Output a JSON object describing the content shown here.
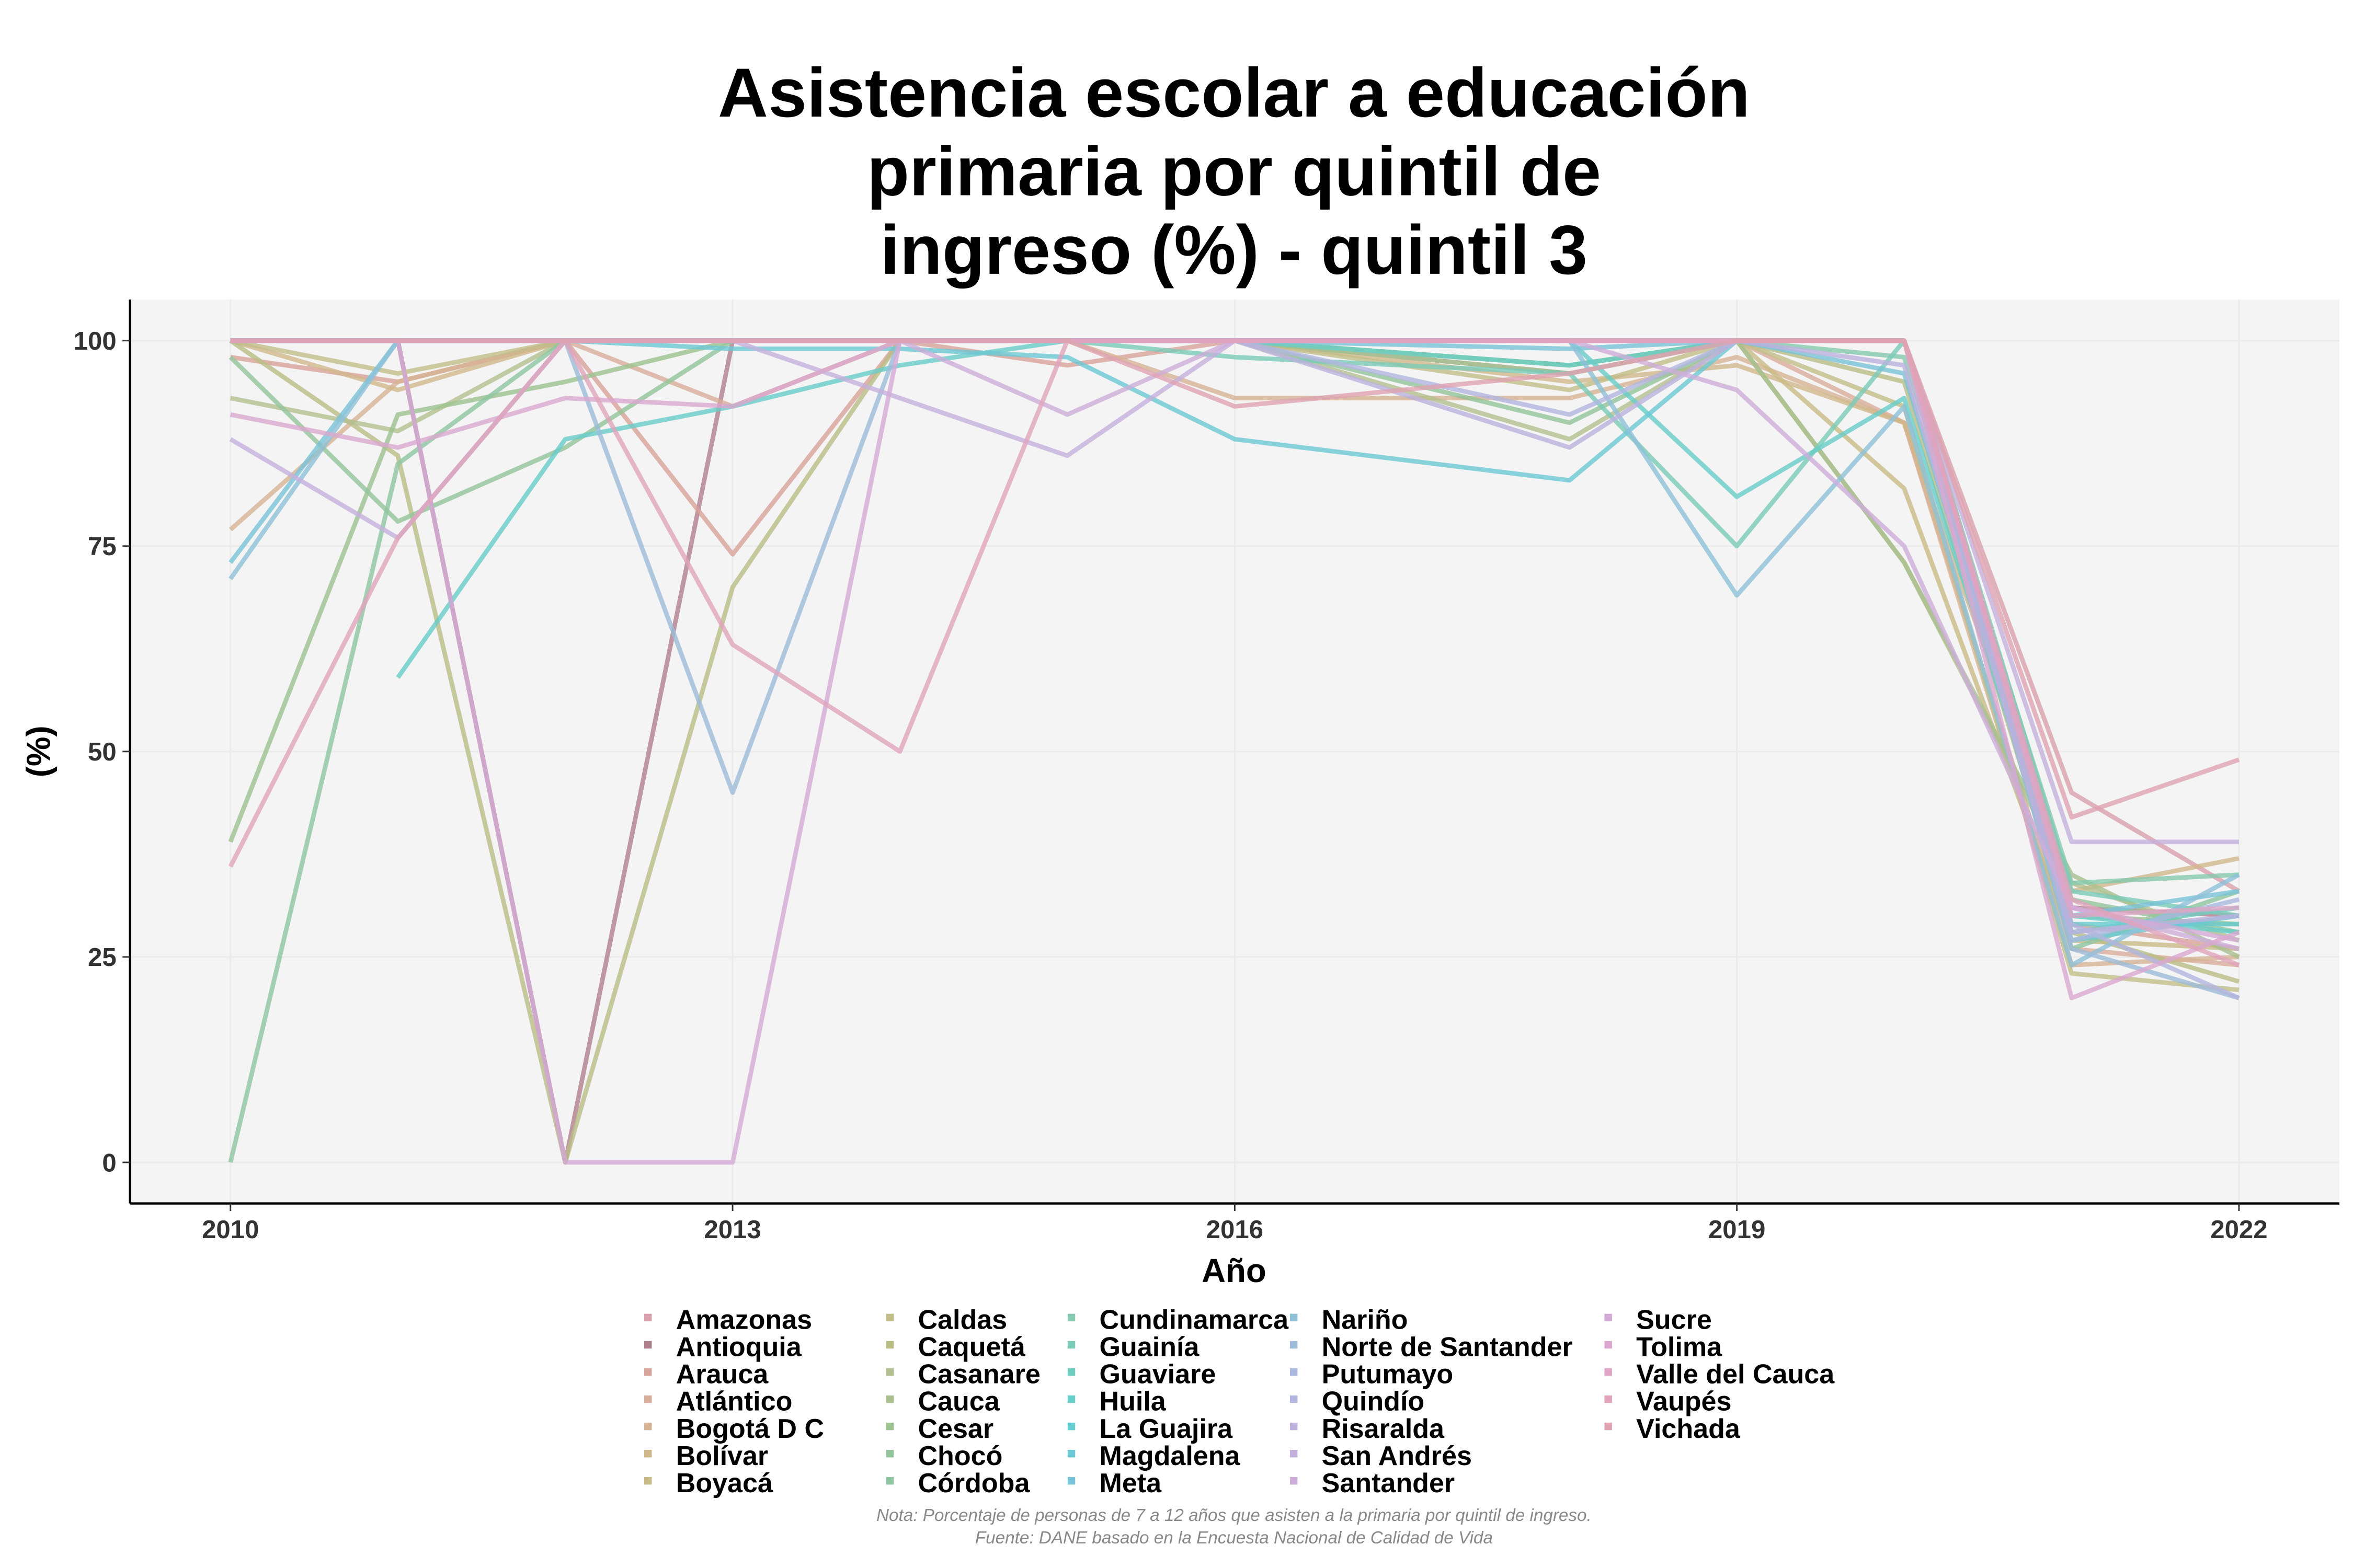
{
  "chart_data": {
    "type": "line",
    "title": [
      "Asistencia escolar a educación",
      "primaria por quintil de",
      "ingreso (%) - quintil 3"
    ],
    "xlabel": "Año",
    "ylabel": "(%)",
    "x": [
      2010,
      2011,
      2012,
      2013,
      2014,
      2015,
      2016,
      2018,
      2019,
      2020,
      2021,
      2022
    ],
    "xticks": [
      "2010",
      "2013",
      "2016",
      "2019",
      "2022"
    ],
    "yticks": [
      "0",
      "25",
      "50",
      "75",
      "100"
    ],
    "xlim": [
      2009.4,
      2022.6
    ],
    "ylim": [
      -5,
      105
    ],
    "grid": true,
    "legend_position": "bottom",
    "series": [
      {
        "name": "Amazonas",
        "color": "#d9a0ab",
        "values": [
          100,
          100,
          100,
          100,
          100,
          100,
          100,
          100,
          100,
          100,
          45,
          33
        ]
      },
      {
        "name": "Antioquia",
        "color": "#b07f8e",
        "values": [
          100,
          100,
          0,
          100,
          100,
          100,
          100,
          100,
          100,
          100,
          31,
          30
        ]
      },
      {
        "name": "Arauca",
        "color": "#d8a39a",
        "values": [
          98,
          95,
          100,
          74,
          100,
          97,
          100,
          96,
          100,
          100,
          29,
          26
        ]
      },
      {
        "name": "Atlántico",
        "color": "#d8ad9a",
        "values": [
          100,
          100,
          100,
          92,
          100,
          100,
          100,
          100,
          100,
          90,
          26,
          24
        ]
      },
      {
        "name": "Bogotá D C",
        "color": "#d6b394",
        "values": [
          77,
          95,
          100,
          100,
          100,
          100,
          93,
          93,
          98,
          90,
          24,
          25
        ]
      },
      {
        "name": "Bolívar",
        "color": "#d1b88c",
        "values": [
          100,
          94,
          100,
          100,
          100,
          100,
          100,
          95,
          97,
          90,
          33,
          37
        ]
      },
      {
        "name": "Boyacá",
        "color": "#c9bb86",
        "values": [
          100,
          100,
          100,
          100,
          100,
          100,
          100,
          97,
          100,
          82,
          27,
          26
        ]
      },
      {
        "name": "Caldas",
        "color": "#c2be88",
        "values": [
          100,
          96,
          100,
          100,
          100,
          100,
          100,
          94,
          100,
          92,
          23,
          21
        ]
      },
      {
        "name": "Caquetá",
        "color": "#b9bd84",
        "values": [
          100,
          86,
          0,
          70,
          100,
          100,
          100,
          100,
          100,
          95,
          28,
          22
        ]
      },
      {
        "name": "Casanare",
        "color": "#b3bf8f",
        "values": [
          93,
          89,
          100,
          100,
          100,
          100,
          100,
          88,
          100,
          73,
          34,
          27
        ]
      },
      {
        "name": "Cauca",
        "color": "#a9bf8e",
        "values": [
          100,
          100,
          100,
          100,
          100,
          100,
          100,
          97,
          100,
          73,
          35,
          25
        ]
      },
      {
        "name": "Cesar",
        "color": "#9cc290",
        "values": [
          39,
          91,
          95,
          100,
          100,
          100,
          100,
          96,
          100,
          100,
          30,
          29
        ]
      },
      {
        "name": "Chocó",
        "color": "#94c49a",
        "values": [
          98,
          78,
          87,
          100,
          100,
          100,
          100,
          90,
          100,
          100,
          32,
          28
        ]
      },
      {
        "name": "Córdoba",
        "color": "#8dc6a0",
        "values": [
          0,
          85,
          100,
          100,
          100,
          100,
          100,
          97,
          100,
          100,
          26,
          33
        ]
      },
      {
        "name": "Cundinamarca",
        "color": "#86c9ae",
        "values": [
          100,
          100,
          100,
          100,
          100,
          100,
          100,
          97,
          100,
          98,
          34,
          35
        ]
      },
      {
        "name": "Guainía",
        "color": "#7bcbb8",
        "values": [
          100,
          100,
          100,
          100,
          100,
          100,
          98,
          96,
          75,
          100,
          33,
          30
        ]
      },
      {
        "name": "Guaviare",
        "color": "#6fcdc0",
        "values": [
          100,
          100,
          100,
          100,
          100,
          100,
          100,
          97,
          100,
          100,
          28,
          31
        ]
      },
      {
        "name": "Huila",
        "color": "#68cdc8",
        "values": [
          null,
          59,
          88,
          92,
          97,
          100,
          100,
          100,
          81,
          93,
          30,
          28
        ]
      },
      {
        "name": "La Guajira",
        "color": "#66ccce",
        "values": [
          100,
          100,
          100,
          100,
          100,
          100,
          100,
          100,
          100,
          100,
          29,
          29
        ]
      },
      {
        "name": "Magdalena",
        "color": "#6bc8d4",
        "values": [
          100,
          100,
          100,
          99,
          99,
          98,
          88,
          83,
          100,
          100,
          27,
          30
        ]
      },
      {
        "name": "Meta",
        "color": "#79c3d8",
        "values": [
          73,
          100,
          100,
          100,
          100,
          100,
          100,
          99,
          100,
          96,
          30,
          33
        ]
      },
      {
        "name": "Nariño",
        "color": "#8ec0d8",
        "values": [
          71,
          100,
          100,
          100,
          100,
          100,
          100,
          100,
          69,
          92,
          24,
          35
        ]
      },
      {
        "name": "Norte de Santander",
        "color": "#9cbcda",
        "values": [
          100,
          100,
          100,
          45,
          100,
          100,
          100,
          100,
          100,
          100,
          26,
          20
        ]
      },
      {
        "name": "Putumayo",
        "color": "#a9b8dc",
        "values": [
          100,
          100,
          100,
          100,
          100,
          100,
          100,
          100,
          100,
          100,
          27,
          32
        ]
      },
      {
        "name": "Quindío",
        "color": "#b2b5de",
        "values": [
          100,
          100,
          100,
          100,
          100,
          100,
          100,
          91,
          100,
          100,
          29,
          20
        ]
      },
      {
        "name": "Risaralda",
        "color": "#bcb2dd",
        "values": [
          100,
          100,
          100,
          100,
          100,
          100,
          100,
          87,
          100,
          97,
          28,
          30
        ]
      },
      {
        "name": "San Andrés",
        "color": "#c4b0dc",
        "values": [
          88,
          76,
          100,
          100,
          93,
          86,
          100,
          100,
          100,
          100,
          39,
          39
        ]
      },
      {
        "name": "Santander",
        "color": "#cdaed9",
        "values": [
          100,
          100,
          100,
          100,
          100,
          91,
          100,
          100,
          94,
          75,
          31,
          26
        ]
      },
      {
        "name": "Sucre",
        "color": "#d3aad6",
        "values": [
          100,
          100,
          0,
          0,
          100,
          100,
          100,
          100,
          100,
          100,
          31,
          27
        ]
      },
      {
        "name": "Tolima",
        "color": "#daa8d0",
        "values": [
          91,
          87,
          93,
          92,
          100,
          100,
          100,
          100,
          100,
          100,
          20,
          28
        ]
      },
      {
        "name": "Valle del Cauca",
        "color": "#dea5c6",
        "values": [
          100,
          100,
          100,
          100,
          100,
          100,
          100,
          100,
          100,
          100,
          30,
          31
        ]
      },
      {
        "name": "Vaupés",
        "color": "#e0a4bc",
        "values": [
          36,
          76,
          100,
          63,
          50,
          100,
          100,
          100,
          100,
          100,
          32,
          24
        ]
      },
      {
        "name": "Vichada",
        "color": "#dfa3b2",
        "values": [
          100,
          100,
          100,
          100,
          100,
          100,
          92,
          96,
          100,
          100,
          42,
          49
        ]
      }
    ],
    "note": "Nota: Porcentaje de personas de 7 a 12 años que asisten a la primaria por quintil de ingreso.",
    "source": "Fuente: DANE basado en la Encuesta Nacional de Calidad de Vida"
  }
}
